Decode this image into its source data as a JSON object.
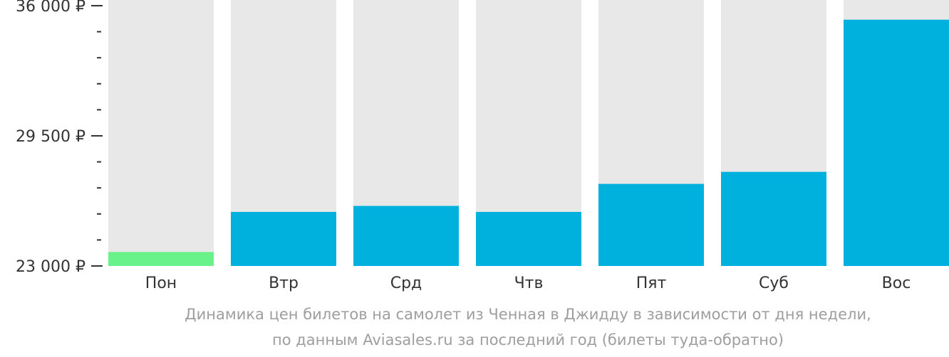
{
  "chart_data": {
    "type": "bar",
    "categories": [
      "Пон",
      "Втр",
      "Срд",
      "Чтв",
      "Пят",
      "Суб",
      "Вос"
    ],
    "values": [
      23700,
      25700,
      26000,
      25700,
      27100,
      27700,
      35300
    ],
    "ylim": [
      23000,
      36000
    ],
    "yticks": [
      {
        "value": 23000,
        "label": "23 000 ₽"
      },
      {
        "value": 29500,
        "label": "29 500 ₽"
      },
      {
        "value": 36000,
        "label": "36 000 ₽"
      }
    ],
    "minor_tick_step": 1300,
    "grid": false,
    "colors": {
      "bar": "#00b0dd",
      "lowest_bar": "#6af28a",
      "track": "#e8e8e8",
      "axis_text": "#333333",
      "caption": "#9e9e9e"
    },
    "highlight_index": 0
  },
  "caption": {
    "line1": "Динамика цен билетов на самолет из Ченная в Джидду в зависимости от дня недели,",
    "line2": "по данным Aviasales.ru за последний год (билеты туда-обратно)"
  }
}
